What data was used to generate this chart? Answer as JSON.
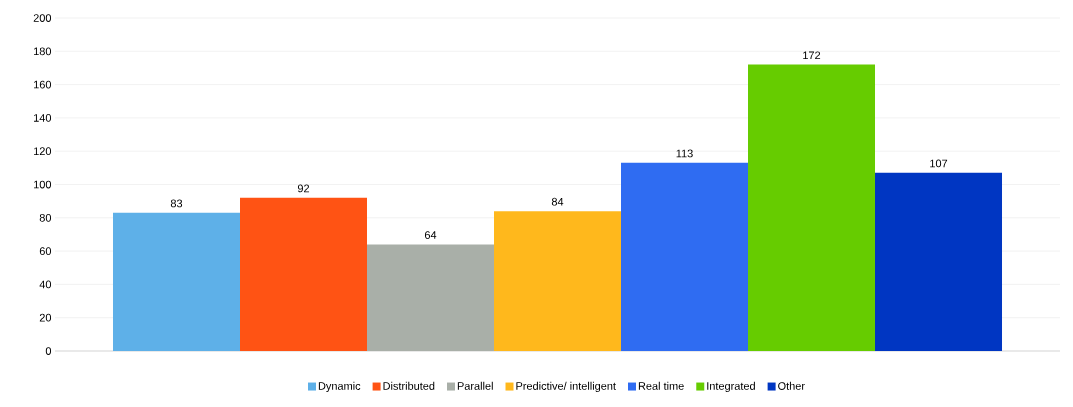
{
  "chart_data": {
    "type": "bar",
    "categories": [
      null
    ],
    "series": [
      {
        "name": "Dynamic",
        "color": "#5eb0e8",
        "values": [
          83
        ]
      },
      {
        "name": "Distributed",
        "color": "#ff5314",
        "values": [
          92
        ]
      },
      {
        "name": "Parallel",
        "color": "#a9afa8",
        "values": [
          64
        ]
      },
      {
        "name": "Predictive/ intelligent",
        "color": "#ffb81c",
        "values": [
          84
        ]
      },
      {
        "name": "Real time",
        "color": "#2f6cf2",
        "values": [
          113
        ]
      },
      {
        "name": "Integrated",
        "color": "#66cc00",
        "values": [
          172
        ]
      },
      {
        "name": "Other",
        "color": "#0036c2",
        "values": [
          107
        ]
      }
    ],
    "ylim": [
      0,
      200
    ],
    "yticks": [
      0,
      20,
      40,
      60,
      80,
      100,
      120,
      140,
      160,
      180,
      200
    ],
    "grid": "y",
    "legend": "bottom",
    "data_labels": true
  }
}
